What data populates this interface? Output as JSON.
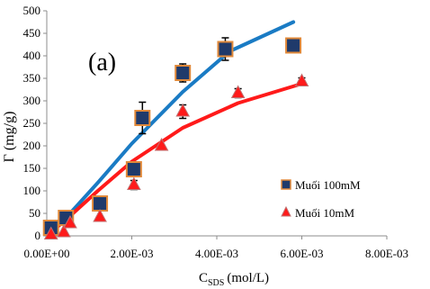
{
  "chart_data": {
    "type": "scatter",
    "panel_label": "(a)",
    "title": "",
    "xlabel_main": "C",
    "xlabel_sub": "SDS",
    "xlabel_unit": "(mol/L)",
    "ylabel": "Γ (mg/g)",
    "xlim": [
      0,
      0.008
    ],
    "ylim": [
      0,
      500
    ],
    "x_ticks": [
      0,
      0.002,
      0.004,
      0.006,
      0.008
    ],
    "x_tick_labels": [
      "0.00E+00",
      "2.00E-03",
      "4.00E-03",
      "6.00E-03",
      "8.00E-03"
    ],
    "y_ticks": [
      0,
      50,
      100,
      150,
      200,
      250,
      300,
      350,
      400,
      450,
      500
    ],
    "y_tick_labels": [
      "0",
      "50",
      "100",
      "150",
      "200",
      "250",
      "300",
      "350",
      "400",
      "450",
      "500"
    ],
    "grid": false,
    "legend_position": "bottom-right",
    "series": [
      {
        "name": "Muối 100mM",
        "marker": "square",
        "marker_color": "#1f3a6b",
        "marker_edge": "#e0893a",
        "line_color": "#1a7bc4",
        "points": [
          {
            "x": 0.0001,
            "y": 18,
            "err": 0
          },
          {
            "x": 0.00045,
            "y": 40,
            "err": 0
          },
          {
            "x": 0.00125,
            "y": 72,
            "err": 0
          },
          {
            "x": 0.00205,
            "y": 148,
            "err": 15
          },
          {
            "x": 0.00225,
            "y": 262,
            "err": 35
          },
          {
            "x": 0.0032,
            "y": 362,
            "err": 20
          },
          {
            "x": 0.0042,
            "y": 415,
            "err": 25
          },
          {
            "x": 0.0058,
            "y": 423,
            "err": 0
          }
        ],
        "fit": [
          {
            "x": 0.0001,
            "y": 10
          },
          {
            "x": 0.0005,
            "y": 45
          },
          {
            "x": 0.0012,
            "y": 118
          },
          {
            "x": 0.002,
            "y": 205
          },
          {
            "x": 0.0032,
            "y": 320
          },
          {
            "x": 0.0043,
            "y": 410
          },
          {
            "x": 0.0058,
            "y": 475
          }
        ]
      },
      {
        "name": "Muối 10mM",
        "marker": "triangle",
        "marker_color": "#ff1a1a",
        "marker_edge": "#c07070",
        "line_color": "#ff1a1a",
        "points": [
          {
            "x": 0.0001,
            "y": 3,
            "err": 0
          },
          {
            "x": 0.0004,
            "y": 8,
            "err": 0
          },
          {
            "x": 0.00055,
            "y": 28,
            "err": 0
          },
          {
            "x": 0.00125,
            "y": 42,
            "err": 0
          },
          {
            "x": 0.00205,
            "y": 113,
            "err": 10
          },
          {
            "x": 0.0027,
            "y": 200,
            "err": 0
          },
          {
            "x": 0.0032,
            "y": 276,
            "err": 15
          },
          {
            "x": 0.0045,
            "y": 317,
            "err": 10
          },
          {
            "x": 0.006,
            "y": 343,
            "err": 8
          }
        ],
        "fit": [
          {
            "x": 0.0001,
            "y": 8
          },
          {
            "x": 0.0005,
            "y": 40
          },
          {
            "x": 0.0012,
            "y": 100
          },
          {
            "x": 0.002,
            "y": 165
          },
          {
            "x": 0.0032,
            "y": 240
          },
          {
            "x": 0.0045,
            "y": 295
          },
          {
            "x": 0.006,
            "y": 338
          }
        ]
      }
    ]
  }
}
